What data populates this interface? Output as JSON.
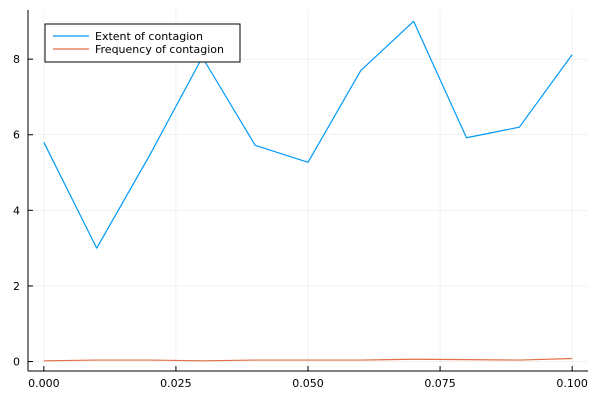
{
  "chart_data": {
    "type": "line",
    "title": "",
    "xlabel": "",
    "ylabel": "",
    "x": [
      0.0,
      0.01,
      0.02,
      0.03,
      0.04,
      0.05,
      0.06,
      0.07,
      0.08,
      0.09,
      0.1
    ],
    "xlim": [
      -0.003,
      0.103
    ],
    "ylim": [
      -0.25,
      9.3
    ],
    "xticks": [
      0.0,
      0.025,
      0.05,
      0.075,
      0.1
    ],
    "xtick_labels": [
      "0.000",
      "0.025",
      "0.050",
      "0.075",
      "0.100"
    ],
    "yticks": [
      0,
      2,
      4,
      6,
      8
    ],
    "ytick_labels": [
      "0",
      "2",
      "4",
      "6",
      "8"
    ],
    "grid": true,
    "legend_position": "top-left",
    "series": [
      {
        "name": "Extent of contagion",
        "color": "#009af9",
        "values": [
          5.8,
          3.0,
          5.45,
          8.05,
          5.72,
          5.27,
          7.7,
          9.0,
          5.92,
          6.2,
          8.12
        ]
      },
      {
        "name": "Frequency of contagion",
        "color": "#e26f46",
        "values": [
          0.02,
          0.04,
          0.04,
          0.02,
          0.04,
          0.04,
          0.04,
          0.06,
          0.05,
          0.04,
          0.08
        ]
      }
    ]
  }
}
